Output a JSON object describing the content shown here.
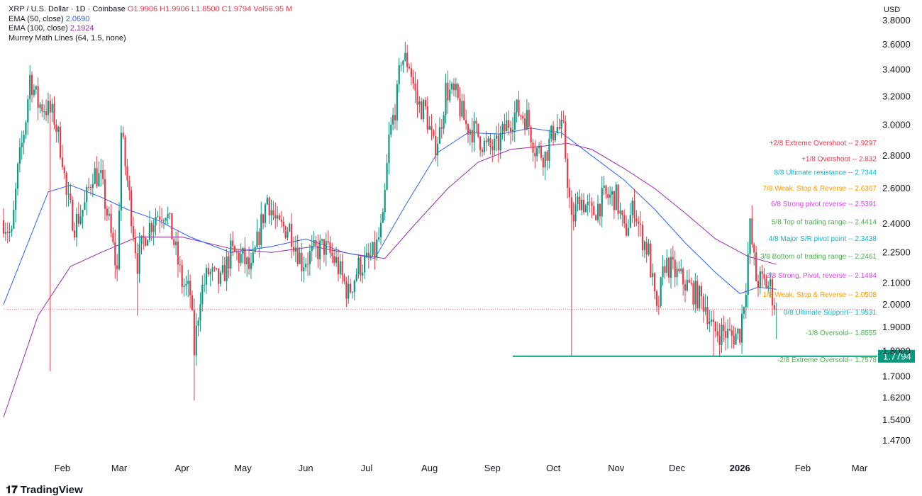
{
  "legend": {
    "symbol": "XRP / U.S. Dollar · 1D · Coinbase",
    "ohlc": "O1.9906 H1.9906 L1.8500 C1.9794 Vol56.95 M",
    "ema50_label": "EMA (50, close)",
    "ema50_value": "2.0690",
    "ema100_label": "EMA (100, close)",
    "ema100_value": "2.1924",
    "murrey_label": "Murrey Math Lines (64, 1.5, none)"
  },
  "currency": "USD",
  "watermark": "TradingView",
  "colors": {
    "up": "#089981",
    "down": "#f23645",
    "ema50": "#2962ff",
    "ema100": "#9c27b0",
    "support_line": "#089981",
    "price_tag": "#089981"
  },
  "chart_data": {
    "type": "candlestick",
    "title": "XRP / U.S. Dollar · 1D · Coinbase",
    "y_scale": "log",
    "ylim": [
      1.41,
      3.95
    ],
    "xlim": [
      "2025-01-03",
      "2026-03-08"
    ],
    "y_ticks": [
      "3.8000",
      "3.6000",
      "3.4000",
      "3.2000",
      "3.0000",
      "2.8000",
      "2.6000",
      "2.4000",
      "2.2500",
      "2.1000",
      "2.0000",
      "1.9000",
      "1.8000",
      "1.7000",
      "1.6200",
      "1.5400",
      "1.4700"
    ],
    "x_ticks": [
      {
        "label": "Feb",
        "date": "2025-02-01",
        "bold": false
      },
      {
        "label": "Mar",
        "date": "2025-03-01",
        "bold": false
      },
      {
        "label": "Apr",
        "date": "2025-04-01",
        "bold": false
      },
      {
        "label": "May",
        "date": "2025-05-01",
        "bold": false
      },
      {
        "label": "Jun",
        "date": "2025-06-01",
        "bold": false
      },
      {
        "label": "Jul",
        "date": "2025-07-01",
        "bold": false
      },
      {
        "label": "Aug",
        "date": "2025-08-01",
        "bold": false
      },
      {
        "label": "Sep",
        "date": "2025-09-01",
        "bold": false
      },
      {
        "label": "Oct",
        "date": "2025-10-01",
        "bold": false
      },
      {
        "label": "Nov",
        "date": "2025-11-01",
        "bold": false
      },
      {
        "label": "Dec",
        "date": "2025-12-01",
        "bold": false
      },
      {
        "label": "2026",
        "date": "2026-01-01",
        "bold": true
      },
      {
        "label": "Feb",
        "date": "2026-02-01",
        "bold": false
      },
      {
        "label": "Mar",
        "date": "2026-03-01",
        "bold": false
      }
    ],
    "price_path": [
      [
        "2025-01-03",
        2.42
      ],
      [
        "2025-01-07",
        2.33
      ],
      [
        "2025-01-10",
        2.7
      ],
      [
        "2025-01-14",
        3.05
      ],
      [
        "2025-01-16",
        3.35
      ],
      [
        "2025-01-20",
        3.15
      ],
      [
        "2025-01-24",
        3.12
      ],
      [
        "2025-01-28",
        3.05
      ],
      [
        "2025-02-01",
        2.8
      ],
      [
        "2025-02-03",
        2.55
      ],
      [
        "2025-02-07",
        2.4
      ],
      [
        "2025-02-12",
        2.5
      ],
      [
        "2025-02-16",
        2.7
      ],
      [
        "2025-02-20",
        2.65
      ],
      [
        "2025-02-24",
        2.4
      ],
      [
        "2025-02-28",
        2.15
      ],
      [
        "2025-03-02",
        2.95
      ],
      [
        "2025-03-06",
        2.55
      ],
      [
        "2025-03-10",
        2.2
      ],
      [
        "2025-03-14",
        2.35
      ],
      [
        "2025-03-19",
        2.45
      ],
      [
        "2025-03-24",
        2.48
      ],
      [
        "2025-03-28",
        2.3
      ],
      [
        "2025-04-01",
        2.1
      ],
      [
        "2025-04-05",
        2.05
      ],
      [
        "2025-04-07",
        1.8
      ],
      [
        "2025-04-10",
        2.05
      ],
      [
        "2025-04-14",
        2.15
      ],
      [
        "2025-04-20",
        2.1
      ],
      [
        "2025-04-25",
        2.25
      ],
      [
        "2025-05-01",
        2.22
      ],
      [
        "2025-05-05",
        2.15
      ],
      [
        "2025-05-10",
        2.4
      ],
      [
        "2025-05-13",
        2.55
      ],
      [
        "2025-05-18",
        2.38
      ],
      [
        "2025-05-24",
        2.38
      ],
      [
        "2025-05-30",
        2.2
      ],
      [
        "2025-06-05",
        2.25
      ],
      [
        "2025-06-10",
        2.28
      ],
      [
        "2025-06-16",
        2.2
      ],
      [
        "2025-06-22",
        2.05
      ],
      [
        "2025-06-27",
        2.18
      ],
      [
        "2025-07-01",
        2.2
      ],
      [
        "2025-07-05",
        2.25
      ],
      [
        "2025-07-09",
        2.4
      ],
      [
        "2025-07-12",
        2.9
      ],
      [
        "2025-07-16",
        3.2
      ],
      [
        "2025-07-18",
        3.5
      ],
      [
        "2025-07-22",
        3.45
      ],
      [
        "2025-07-26",
        3.15
      ],
      [
        "2025-07-30",
        3.1
      ],
      [
        "2025-08-03",
        2.85
      ],
      [
        "2025-08-06",
        2.95
      ],
      [
        "2025-08-09",
        3.25
      ],
      [
        "2025-08-14",
        3.2
      ],
      [
        "2025-08-19",
        3.0
      ],
      [
        "2025-08-24",
        2.95
      ],
      [
        "2025-08-29",
        2.85
      ],
      [
        "2025-09-03",
        2.85
      ],
      [
        "2025-09-08",
        3.0
      ],
      [
        "2025-09-13",
        3.1
      ],
      [
        "2025-09-18",
        3.05
      ],
      [
        "2025-09-22",
        2.85
      ],
      [
        "2025-09-27",
        2.8
      ],
      [
        "2025-10-02",
        3.0
      ],
      [
        "2025-10-06",
        2.95
      ],
      [
        "2025-10-10",
        2.4
      ],
      [
        "2025-10-14",
        2.55
      ],
      [
        "2025-10-20",
        2.45
      ],
      [
        "2025-10-26",
        2.55
      ],
      [
        "2025-11-01",
        2.55
      ],
      [
        "2025-11-05",
        2.35
      ],
      [
        "2025-11-10",
        2.5
      ],
      [
        "2025-11-13",
        2.35
      ],
      [
        "2025-11-17",
        2.25
      ],
      [
        "2025-11-21",
        1.95
      ],
      [
        "2025-11-25",
        2.2
      ],
      [
        "2025-11-30",
        2.15
      ],
      [
        "2025-12-05",
        2.1
      ],
      [
        "2025-12-10",
        2.05
      ],
      [
        "2025-12-15",
        2.0
      ],
      [
        "2025-12-19",
        1.88
      ],
      [
        "2025-12-24",
        1.88
      ],
      [
        "2025-12-28",
        1.86
      ],
      [
        "2026-01-01",
        1.88
      ],
      [
        "2026-01-04",
        2.1
      ],
      [
        "2026-01-06",
        2.38
      ],
      [
        "2026-01-09",
        2.12
      ],
      [
        "2026-01-13",
        2.1
      ],
      [
        "2026-01-16",
        2.08
      ],
      [
        "2026-01-19",
        1.97
      ]
    ],
    "spikes": [
      {
        "date": "2025-01-26",
        "low": 1.72
      },
      {
        "date": "2025-03-10",
        "low": 1.95
      },
      {
        "date": "2025-04-07",
        "low": 1.61
      },
      {
        "date": "2025-10-10",
        "low": 1.7794
      },
      {
        "date": "2025-12-19",
        "low": 1.7794
      },
      {
        "date": "2026-01-06",
        "high": 2.41
      },
      {
        "date": "2026-01-19",
        "low": 1.85
      }
    ],
    "ema50_path": [
      [
        "2025-01-03",
        2.0
      ],
      [
        "2025-01-25",
        2.58
      ],
      [
        "2025-02-05",
        2.62
      ],
      [
        "2025-02-20",
        2.55
      ],
      [
        "2025-03-05",
        2.48
      ],
      [
        "2025-03-20",
        2.42
      ],
      [
        "2025-04-05",
        2.33
      ],
      [
        "2025-04-25",
        2.25
      ],
      [
        "2025-05-15",
        2.28
      ],
      [
        "2025-06-01",
        2.32
      ],
      [
        "2025-06-20",
        2.25
      ],
      [
        "2025-07-05",
        2.22
      ],
      [
        "2025-07-20",
        2.5
      ],
      [
        "2025-08-05",
        2.82
      ],
      [
        "2025-08-20",
        2.95
      ],
      [
        "2025-09-05",
        2.94
      ],
      [
        "2025-09-20",
        2.98
      ],
      [
        "2025-10-05",
        2.95
      ],
      [
        "2025-10-20",
        2.8
      ],
      [
        "2025-11-05",
        2.65
      ],
      [
        "2025-11-20",
        2.48
      ],
      [
        "2025-12-05",
        2.3
      ],
      [
        "2025-12-20",
        2.15
      ],
      [
        "2026-01-01",
        2.05
      ],
      [
        "2026-01-10",
        2.08
      ],
      [
        "2026-01-19",
        2.07
      ]
    ],
    "ema100_path": [
      [
        "2025-01-03",
        1.55
      ],
      [
        "2025-01-20",
        1.95
      ],
      [
        "2025-02-05",
        2.18
      ],
      [
        "2025-02-20",
        2.25
      ],
      [
        "2025-03-10",
        2.33
      ],
      [
        "2025-04-01",
        2.33
      ],
      [
        "2025-04-25",
        2.27
      ],
      [
        "2025-05-15",
        2.25
      ],
      [
        "2025-06-05",
        2.28
      ],
      [
        "2025-06-25",
        2.24
      ],
      [
        "2025-07-10",
        2.22
      ],
      [
        "2025-07-25",
        2.4
      ],
      [
        "2025-08-10",
        2.6
      ],
      [
        "2025-08-25",
        2.76
      ],
      [
        "2025-09-10",
        2.84
      ],
      [
        "2025-09-25",
        2.86
      ],
      [
        "2025-10-08",
        2.88
      ],
      [
        "2025-10-20",
        2.84
      ],
      [
        "2025-11-05",
        2.72
      ],
      [
        "2025-11-20",
        2.6
      ],
      [
        "2025-12-05",
        2.46
      ],
      [
        "2025-12-20",
        2.32
      ],
      [
        "2026-01-05",
        2.23
      ],
      [
        "2026-01-19",
        2.19
      ]
    ],
    "murrey_lines": [
      {
        "label": "+2/8 Extreme Overshoot --",
        "value": "2.9297",
        "color": "#f23645"
      },
      {
        "label": "+1/8 Overshoot --",
        "value": "2.832",
        "color": "#f23645"
      },
      {
        "label": "8/8 Ultimate resistance --",
        "value": "2.7344",
        "color": "#00bcd4"
      },
      {
        "label": "7/8 Weak, Stop & Reverse --",
        "value": "2.6367",
        "color": "#ff9800"
      },
      {
        "label": "6/8 Strong pivot reverse --",
        "value": "2.5391",
        "color": "#e040fb"
      },
      {
        "label": "5/8 Top of trading range --",
        "value": "2.4414",
        "color": "#4caf50"
      },
      {
        "label": "4/8 Major S/R pivot point --",
        "value": "2.3438",
        "color": "#00bcd4"
      },
      {
        "label": "3/8 Bottom of trading range --",
        "value": "2.2461",
        "color": "#4caf50"
      },
      {
        "label": "2/8 Strong, Pivot, reverse --",
        "value": "2.1484",
        "color": "#e040fb"
      },
      {
        "label": "1/8 Weak, Stop & Reverse --",
        "value": "2.0508",
        "color": "#ff9800"
      },
      {
        "label": "0/8 Ultimate Support--",
        "value": "1.9531",
        "color": "#00bcd4"
      },
      {
        "label": "-1/8 Oversold--",
        "value": "1.8555",
        "color": "#4caf50"
      },
      {
        "label": "-2/8 Extreme Oversold--",
        "value": "1.7578",
        "color": "#4caf50"
      }
    ],
    "murrey_y_positions": [
      2.88,
      2.78,
      2.695,
      2.6,
      2.51,
      2.41,
      2.32,
      2.23,
      2.135,
      2.045,
      1.965,
      1.875,
      1.765
    ],
    "support_level": {
      "value": 1.7794,
      "label": "1.7794",
      "from": "2025-09-11"
    },
    "last_close": 1.9794
  }
}
